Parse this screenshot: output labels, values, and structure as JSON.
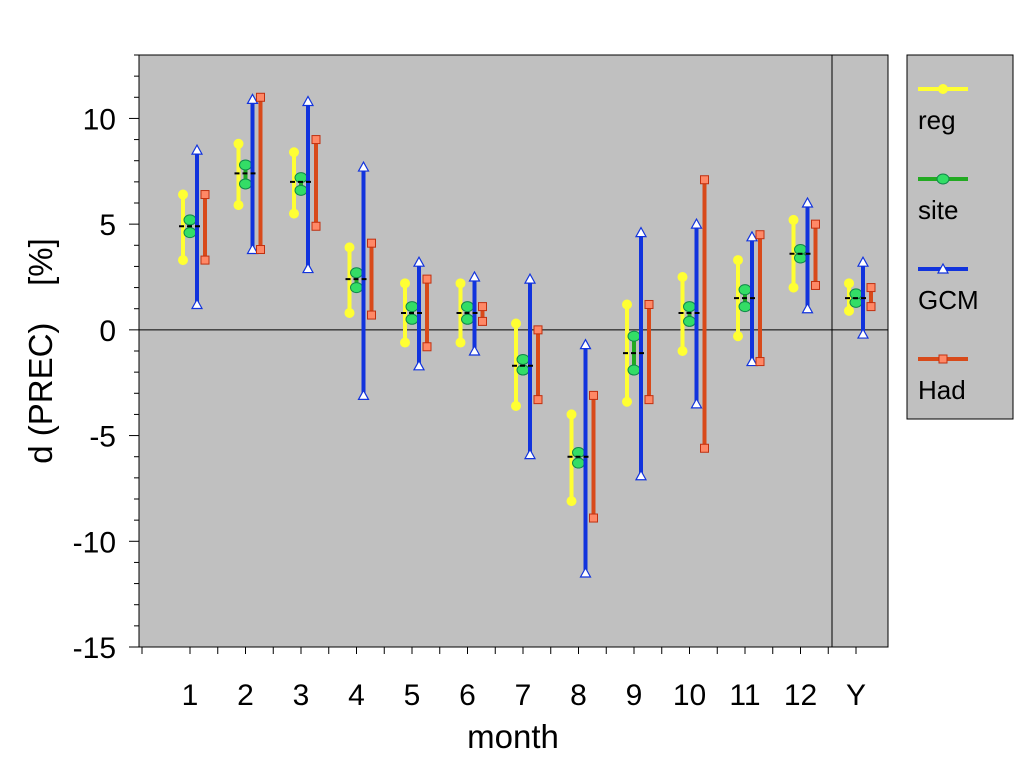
{
  "chart_data": {
    "type": "errorbar",
    "xlabel": "month",
    "ylabel": "d (PREC)    [%]",
    "categories": [
      "1",
      "2",
      "3",
      "4",
      "5",
      "6",
      "7",
      "8",
      "9",
      "10",
      "11",
      "12",
      "Y"
    ],
    "ylim": [
      -15,
      13
    ],
    "yticks": [
      -15,
      -10,
      -5,
      0,
      5,
      10
    ],
    "ytick_labels": [
      "-15",
      "-10",
      "-5",
      "0",
      "5",
      "10"
    ],
    "grid": false,
    "legend_position": "right",
    "mean_marks": [
      4.9,
      7.4,
      7.0,
      2.4,
      0.8,
      0.8,
      -1.7,
      -6.0,
      -1.1,
      0.8,
      1.5,
      3.6,
      1.5
    ],
    "series": [
      {
        "name": "reg",
        "color": "#ffff33",
        "marker": "dot",
        "low": [
          3.3,
          5.9,
          5.5,
          0.8,
          -0.6,
          -0.6,
          -3.6,
          -8.1,
          -3.4,
          -1.0,
          -0.3,
          2.0,
          0.9
        ],
        "mid": [
          null,
          null,
          null,
          null,
          null,
          null,
          null,
          null,
          null,
          null,
          null,
          null,
          null
        ],
        "high": [
          6.4,
          8.8,
          8.4,
          3.9,
          2.2,
          2.2,
          0.3,
          -4.0,
          1.2,
          2.5,
          3.3,
          5.2,
          2.2
        ]
      },
      {
        "name": "site",
        "color": "#22aa22",
        "marker": "ellipse",
        "low": [
          4.6,
          6.9,
          6.6,
          2.0,
          0.5,
          0.5,
          -1.9,
          -6.3,
          -1.9,
          0.4,
          1.1,
          3.4,
          1.3
        ],
        "high": [
          5.2,
          7.8,
          7.2,
          2.7,
          1.1,
          1.1,
          -1.4,
          -5.8,
          -0.3,
          1.1,
          1.9,
          3.8,
          1.7
        ]
      },
      {
        "name": "GCM",
        "color": "#1133dd",
        "marker": "triangle",
        "low": [
          1.2,
          3.8,
          2.9,
          -3.1,
          -1.7,
          -1.0,
          -5.9,
          -11.5,
          -6.9,
          -3.5,
          -1.5,
          1.0,
          -0.2
        ],
        "high": [
          8.5,
          10.9,
          10.8,
          7.7,
          3.2,
          2.5,
          2.4,
          -0.7,
          4.6,
          5.0,
          4.4,
          6.0,
          3.2
        ]
      },
      {
        "name": "Had",
        "color": "#d84a1a",
        "marker": "square",
        "low": [
          3.3,
          3.8,
          4.9,
          0.7,
          -0.8,
          0.4,
          -3.3,
          -8.9,
          -3.3,
          -5.6,
          -1.5,
          2.1,
          1.1
        ],
        "high": [
          6.4,
          11.0,
          9.0,
          4.1,
          2.4,
          1.1,
          0.0,
          -3.1,
          1.2,
          7.1,
          4.5,
          5.0,
          2.0
        ]
      }
    ],
    "colors": {
      "plot_bg": "#c0c0c0",
      "legend_bg": "#c0c0c0",
      "axis": "#000000",
      "page_bg": "#ffffff"
    }
  }
}
